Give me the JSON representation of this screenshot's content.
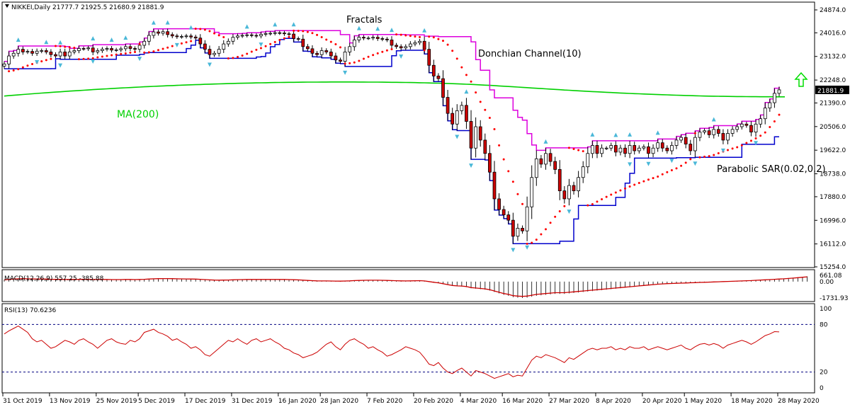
{
  "chart_data": {
    "type": "candlestick",
    "title": "NIKKEI,Daily  21777.7 21925.5 21680.9 21881.9",
    "last_price": "21881.9",
    "colors": {
      "bull_body": "#ffffff",
      "bear_body": "#cc0000",
      "candle_outline": "#000000",
      "ma200": "#00d000",
      "donchian_upper": "#dd00dd",
      "donchian_lower": "#0000cc",
      "sar": "#ff0000",
      "fractal": "#4ab8d8",
      "macd_line": "#cc0000",
      "rsi_line": "#cc0000",
      "rsi_levels": "#000080",
      "arrow": "#00dd00"
    },
    "annotations": {
      "fractals": "Fractals",
      "donchian": "Donchian Channel(10)",
      "ma": "MA(200)",
      "sar": "Parabolic SAR(0.02,0.2)"
    },
    "price_axis": {
      "min": 15254.0,
      "max": 24874.0,
      "ticks": [
        "24874.0",
        "24016.0",
        "23132.0",
        "22248.0",
        "21390.0",
        "20506.0",
        "19622.0",
        "18738.0",
        "17880.0",
        "16996.0",
        "16112.0",
        "15254.0"
      ]
    },
    "x_labels": [
      "31 Oct 2019",
      "13 Nov 2019",
      "25 Nov 2019",
      "5 Dec 2019",
      "17 Dec 2019",
      "31 Dec 2019",
      "16 Jan 2020",
      "28 Jan 2020",
      "7 Feb 2020",
      "20 Feb 2020",
      "4 Mar 2020",
      "16 Mar 2020",
      "27 Mar 2020",
      "8 Apr 2020",
      "20 Apr 2020",
      "1 May 2020",
      "18 May 2020",
      "28 May 2020"
    ],
    "close": [
      22850,
      23150,
      23250,
      23400,
      23300,
      23320,
      23250,
      23330,
      23350,
      23300,
      23200,
      23150,
      23300,
      23150,
      23300,
      23350,
      23430,
      23420,
      23450,
      23300,
      23350,
      23400,
      23430,
      23370,
      23380,
      23420,
      23500,
      23430,
      23400,
      23550,
      23700,
      23920,
      24050,
      24000,
      24060,
      23950,
      23900,
      23870,
      23880,
      23900,
      23860,
      23820,
      23600,
      23400,
      23200,
      23250,
      23400,
      23600,
      23700,
      23850,
      23900,
      23920,
      23940,
      23920,
      23900,
      23960,
      23990,
      24000,
      24020,
      24010,
      23980,
      23970,
      23800,
      23780,
      23500,
      23420,
      23250,
      23200,
      23350,
      23300,
      23150,
      23000,
      22950,
      23300,
      23500,
      23750,
      23850,
      23820,
      23820,
      23850,
      23800,
      23780,
      23750,
      23550,
      23500,
      23450,
      23500,
      23600,
      23650,
      23700,
      23400,
      22800,
      22400,
      22300,
      21600,
      21000,
      20600,
      21100,
      21300,
      20700,
      19700,
      20500,
      20000,
      19500,
      18800,
      17800,
      17400,
      17200,
      17000,
      16400,
      16700,
      16600,
      17500,
      18600,
      19300,
      19100,
      19500,
      19200,
      18900,
      18100,
      17800,
      18300,
      18100,
      18600,
      19000,
      19500,
      19800,
      19500,
      19700,
      19700,
      19800,
      19550,
      19700,
      19500,
      19800,
      19600,
      19700,
      19750,
      19500,
      19700,
      19900,
      19700,
      19600,
      19800,
      20000,
      20100,
      19850,
      19600,
      20100,
      20300,
      20350,
      20200,
      20400,
      20250,
      20000,
      20250,
      20400,
      20500,
      20600,
      20550,
      20300,
      20600,
      20800,
      21200,
      21400,
      21750,
      21881.9
    ],
    "ma200": [
      21650,
      21664,
      21678,
      21692,
      21706,
      21720,
      21733,
      21746,
      21759,
      21772,
      21785,
      21797,
      21809,
      21821,
      21833,
      21845,
      21856,
      21867,
      21878,
      21889,
      21900,
      21910,
      21920,
      21930,
      21940,
      21950,
      21959,
      21968,
      21977,
      21986,
      21995,
      22003,
      22011,
      22019,
      22027,
      22035,
      22042,
      22049,
      22056,
      22063,
      22070,
      22076,
      22082,
      22088,
      22094,
      22100,
      22105,
      22110,
      22115,
      22120,
      22125,
      22129,
      22133,
      22137,
      22141,
      22145,
      22148,
      22151,
      22154,
      22157,
      22160,
      22162,
      22164,
      22166,
      22168,
      22170,
      22171,
      22172,
      22173,
      22174,
      22175,
      22175,
      22175,
      22175,
      22175,
      22175,
      22174,
      22173,
      22172,
      22171,
      22170,
      22168,
      22166,
      22164,
      22162,
      22160,
      22157,
      22154,
      22151,
      22148,
      22145,
      22140,
      22135,
      22130,
      22125,
      22120,
      22113,
      22106,
      22099,
      22092,
      22085,
      22076,
      22067,
      22058,
      22049,
      22040,
      22029,
      22018,
      22007,
      21996,
      21985,
      21974,
      21963,
      21952,
      21941,
      21930,
      21919,
      21908,
      21897,
      21886,
      21875,
      21865,
      21855,
      21845,
      21835,
      21825,
      21816,
      21807,
      21798,
      21789,
      21780,
      21772,
      21764,
      21756,
      21748,
      21740,
      21733,
      21726,
      21719,
      21712,
      21705,
      21699,
      21693,
      21687,
      21681,
      21675,
      21670,
      21665,
      21660,
      21655,
      21650,
      21647,
      21644,
      21641,
      21638,
      21635,
      21633,
      21631,
      21629,
      21627,
      21625,
      21624,
      21623,
      21622,
      21621,
      21620,
      21620
    ],
    "rsi": {
      "label": "RSI(13) 70.6236",
      "levels": [
        "80",
        "20"
      ],
      "ticks": [
        "100",
        "80",
        "20",
        "0"
      ],
      "values": [
        68,
        72,
        75,
        78,
        74,
        70,
        62,
        58,
        60,
        55,
        50,
        52,
        56,
        60,
        58,
        55,
        60,
        62,
        58,
        55,
        50,
        55,
        60,
        62,
        58,
        56,
        55,
        60,
        58,
        62,
        70,
        72,
        74,
        70,
        68,
        65,
        60,
        62,
        58,
        55,
        50,
        52,
        48,
        42,
        40,
        45,
        50,
        55,
        60,
        58,
        62,
        58,
        55,
        60,
        62,
        58,
        60,
        62,
        58,
        55,
        50,
        48,
        44,
        42,
        38,
        40,
        42,
        45,
        50,
        55,
        58,
        52,
        48,
        55,
        60,
        62,
        58,
        55,
        50,
        52,
        48,
        45,
        40,
        42,
        45,
        48,
        52,
        50,
        48,
        45,
        38,
        30,
        28,
        32,
        25,
        20,
        18,
        22,
        25,
        20,
        15,
        22,
        20,
        18,
        15,
        12,
        14,
        16,
        18,
        14,
        16,
        15,
        25,
        35,
        40,
        38,
        42,
        40,
        38,
        35,
        32,
        38,
        36,
        40,
        44,
        48,
        50,
        48,
        50,
        50,
        52,
        48,
        50,
        48,
        52,
        50,
        50,
        52,
        48,
        50,
        52,
        50,
        48,
        50,
        52,
        54,
        50,
        48,
        52,
        55,
        56,
        54,
        56,
        54,
        50,
        54,
        56,
        58,
        60,
        58,
        55,
        58,
        62,
        66,
        68,
        71,
        70.6
      ]
    },
    "macd": {
      "label": "MACD(12,26,9) 557.25 -385.88",
      "ticks": [
        "661.08",
        "0.00",
        "-1731.93"
      ],
      "values": [
        200,
        250,
        300,
        330,
        340,
        330,
        320,
        310,
        300,
        290,
        270,
        260,
        260,
        250,
        250,
        250,
        260,
        260,
        260,
        250,
        250,
        250,
        250,
        240,
        240,
        240,
        250,
        250,
        240,
        250,
        270,
        300,
        330,
        340,
        350,
        350,
        340,
        330,
        320,
        310,
        300,
        290,
        270,
        240,
        200,
        180,
        170,
        180,
        190,
        210,
        230,
        240,
        250,
        255,
        250,
        250,
        250,
        250,
        250,
        250,
        250,
        240,
        220,
        200,
        170,
        140,
        110,
        90,
        80,
        80,
        70,
        60,
        50,
        70,
        90,
        120,
        140,
        150,
        160,
        160,
        160,
        150,
        140,
        120,
        100,
        90,
        80,
        90,
        100,
        110,
        80,
        0,
        -80,
        -150,
        -250,
        -350,
        -450,
        -500,
        -520,
        -580,
        -700,
        -750,
        -800,
        -850,
        -950,
        -1100,
        -1250,
        -1400,
        -1500,
        -1650,
        -1700,
        -1730,
        -1700,
        -1600,
        -1500,
        -1450,
        -1400,
        -1350,
        -1300,
        -1300,
        -1300,
        -1250,
        -1200,
        -1150,
        -1100,
        -1050,
        -1000,
        -950,
        -900,
        -850,
        -800,
        -750,
        -700,
        -650,
        -600,
        -550,
        -500,
        -450,
        -400,
        -350,
        -300,
        -270,
        -240,
        -220,
        -200,
        -180,
        -160,
        -140,
        -120,
        -100,
        -80,
        -60,
        -40,
        -20,
        0,
        20,
        40,
        60,
        80,
        100,
        120,
        150,
        180,
        210,
        240,
        270,
        300,
        330,
        370,
        410,
        460,
        510,
        557
      ]
    },
    "signal_arrow": "up"
  }
}
